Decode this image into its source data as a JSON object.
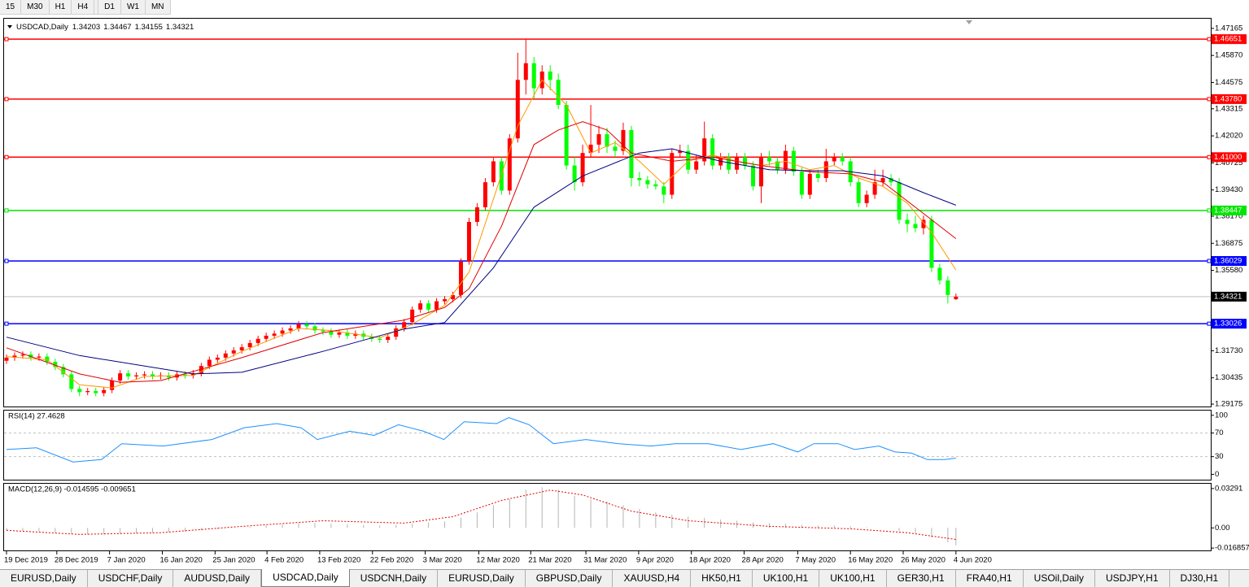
{
  "toolbar": {
    "timeframes": [
      "15",
      "M30",
      "H1",
      "H4",
      "D1",
      "W1",
      "MN"
    ]
  },
  "chart_data": {
    "type": "candlestick",
    "symbol": "USDCAD,Daily",
    "up_color": "#ff0000",
    "down_color": "#00ff00",
    "xlim": [
      -0.3,
      148.4
    ],
    "ylim": [
      1.2906,
      1.4763
    ],
    "yticks": [
      1.47165,
      {
        "value": 1.4587,
        "label": "1.45870"
      },
      1.44575,
      1.43315,
      {
        "value": 1.4202,
        "label": "1.42020"
      },
      1.40725,
      {
        "value": 1.3943,
        "label": "1.39430"
      },
      {
        "value": 1.3817,
        "label": "1.38170"
      },
      1.36875,
      {
        "value": 1.3558,
        "label": "1.35580"
      },
      {
        "value": 1.3173,
        "label": "1.31730"
      },
      1.30435,
      1.29175
    ],
    "date_ticks": [
      {
        "value": 0,
        "label": "19 Dec 2019"
      },
      {
        "value": 6.2,
        "label": "28 Dec 2019"
      },
      {
        "value": 12.7,
        "label": "7 Jan 2020"
      },
      {
        "value": 19.2,
        "label": "16 Jan 2020"
      },
      {
        "value": 25.7,
        "label": "25 Jan 2020"
      },
      {
        "value": 32.1,
        "label": "4 Feb 2020"
      },
      {
        "value": 38.6,
        "label": "13 Feb 2020"
      },
      {
        "value": 45.1,
        "label": "22 Feb 2020"
      },
      {
        "value": 51.6,
        "label": "3 Mar 2020"
      },
      {
        "value": 58.2,
        "label": "12 Mar 2020"
      },
      {
        "value": 64.6,
        "label": "21 Mar 2020"
      },
      {
        "value": 71.4,
        "label": "31 Mar 2020"
      },
      {
        "value": 77.9,
        "label": "9 Apr 2020"
      },
      {
        "value": 84.4,
        "label": "18 Apr 2020"
      },
      {
        "value": 90.9,
        "label": "28 Apr 2020"
      },
      {
        "value": 97.5,
        "label": "7 May 2020"
      },
      {
        "value": 104,
        "label": "16 May 2020"
      },
      {
        "value": 110.5,
        "label": "26 May 2020"
      },
      {
        "value": 117,
        "label": "4 Jun 2020"
      }
    ],
    "open": [
      1.3125,
      1.314,
      1.315,
      1.3155,
      1.314,
      1.3145,
      1.312,
      1.3095,
      1.306,
      1.299,
      1.2975,
      1.298,
      1.297,
      1.2985,
      1.303,
      1.3065,
      1.305,
      1.3055,
      1.306,
      1.305,
      1.3055,
      1.3045,
      1.306,
      1.3055,
      1.3065,
      1.31,
      1.313,
      1.314,
      1.316,
      1.3175,
      1.319,
      1.321,
      1.323,
      1.3245,
      1.3255,
      1.327,
      1.328,
      1.33,
      1.329,
      1.327,
      1.3265,
      1.325,
      1.326,
      1.3245,
      1.3255,
      1.324,
      1.323,
      1.3225,
      1.324,
      1.328,
      1.331,
      1.337,
      1.34,
      1.337,
      1.341,
      1.342,
      1.344,
      1.36,
      1.379,
      1.386,
      1.398,
      1.408,
      1.394,
      1.419,
      1.447,
      1.455,
      1.443,
      1.451,
      1.447,
      1.435,
      1.406,
      1.398,
      1.412,
      1.416,
      1.421,
      1.415,
      1.413,
      1.423,
      1.4,
      1.399,
      1.397,
      1.396,
      1.392,
      1.412,
      1.413,
      1.404,
      1.408,
      1.419,
      1.406,
      1.41,
      1.404,
      1.41,
      1.406,
      1.396,
      1.41,
      1.408,
      1.404,
      1.413,
      1.403,
      1.392,
      1.402,
      1.4,
      1.408,
      1.41,
      1.408,
      1.398,
      1.388,
      1.392,
      1.398,
      1.4,
      1.398,
      1.38,
      1.378,
      1.376,
      1.38,
      1.357,
      1.351,
      1.34203
    ],
    "high": [
      1.3155,
      1.3165,
      1.317,
      1.317,
      1.316,
      1.316,
      1.3135,
      1.311,
      1.3075,
      1.3005,
      1.2995,
      1.2995,
      1.3,
      1.3045,
      1.308,
      1.308,
      1.307,
      1.3075,
      1.3075,
      1.307,
      1.307,
      1.3075,
      1.3075,
      1.308,
      1.3115,
      1.3145,
      1.3155,
      1.3175,
      1.319,
      1.3205,
      1.3225,
      1.3245,
      1.326,
      1.327,
      1.3285,
      1.3295,
      1.3315,
      1.3315,
      1.3305,
      1.3285,
      1.328,
      1.3275,
      1.3275,
      1.327,
      1.327,
      1.3255,
      1.3245,
      1.3255,
      1.3295,
      1.3325,
      1.3385,
      1.3415,
      1.3415,
      1.3425,
      1.3435,
      1.3455,
      1.3615,
      1.381,
      1.388,
      1.4,
      1.41,
      1.41,
      1.421,
      1.46,
      1.4667,
      1.458,
      1.454,
      1.454,
      1.45,
      1.437,
      1.41,
      1.416,
      1.435,
      1.425,
      1.424,
      1.418,
      1.4265,
      1.425,
      1.403,
      1.401,
      1.399,
      1.398,
      1.414,
      1.416,
      1.416,
      1.411,
      1.427,
      1.421,
      1.412,
      1.412,
      1.412,
      1.412,
      1.408,
      1.412,
      1.413,
      1.41,
      1.416,
      1.415,
      1.405,
      1.404,
      1.404,
      1.414,
      1.412,
      1.412,
      1.41,
      1.4,
      1.394,
      1.404,
      1.404,
      1.402,
      1.4,
      1.383,
      1.382,
      1.382,
      1.382,
      1.359,
      1.353,
      1.34467
    ],
    "low": [
      1.311,
      1.3125,
      1.3135,
      1.3125,
      1.3125,
      1.3105,
      1.308,
      1.3045,
      1.2975,
      1.2955,
      1.296,
      1.2955,
      1.2955,
      1.297,
      1.3015,
      1.3035,
      1.3035,
      1.304,
      1.3035,
      1.3035,
      1.303,
      1.303,
      1.304,
      1.304,
      1.305,
      1.3085,
      1.3115,
      1.3125,
      1.3145,
      1.316,
      1.3175,
      1.3195,
      1.3215,
      1.323,
      1.324,
      1.3255,
      1.3265,
      1.3275,
      1.3255,
      1.325,
      1.3235,
      1.3235,
      1.323,
      1.323,
      1.3225,
      1.3215,
      1.321,
      1.321,
      1.3225,
      1.3265,
      1.3295,
      1.3355,
      1.3355,
      1.3355,
      1.3395,
      1.3405,
      1.3425,
      1.3585,
      1.377,
      1.3845,
      1.396,
      1.392,
      1.392,
      1.417,
      1.44,
      1.438,
      1.44,
      1.442,
      1.433,
      1.404,
      1.394,
      1.396,
      1.41,
      1.412,
      1.412,
      1.41,
      1.411,
      1.396,
      1.396,
      1.395,
      1.3945,
      1.388,
      1.39,
      1.41,
      1.402,
      1.402,
      1.406,
      1.404,
      1.404,
      1.402,
      1.402,
      1.404,
      1.394,
      1.388,
      1.406,
      1.402,
      1.402,
      1.401,
      1.39,
      1.39,
      1.398,
      1.398,
      1.406,
      1.406,
      1.396,
      1.386,
      1.386,
      1.39,
      1.396,
      1.396,
      1.378,
      1.374,
      1.374,
      1.373,
      1.355,
      1.349,
      1.34,
      1.34155
    ],
    "close": [
      1.314,
      1.315,
      1.3155,
      1.314,
      1.3145,
      1.312,
      1.3095,
      1.306,
      1.299,
      1.2975,
      1.298,
      1.297,
      1.2985,
      1.303,
      1.3065,
      1.305,
      1.3055,
      1.306,
      1.305,
      1.3055,
      1.3045,
      1.306,
      1.3055,
      1.3065,
      1.31,
      1.313,
      1.314,
      1.316,
      1.3175,
      1.319,
      1.321,
      1.323,
      1.3245,
      1.3255,
      1.327,
      1.328,
      1.33,
      1.329,
      1.327,
      1.3265,
      1.325,
      1.326,
      1.3245,
      1.3255,
      1.324,
      1.323,
      1.3225,
      1.324,
      1.328,
      1.331,
      1.337,
      1.34,
      1.337,
      1.341,
      1.342,
      1.344,
      1.36,
      1.379,
      1.386,
      1.398,
      1.408,
      1.394,
      1.419,
      1.447,
      1.455,
      1.443,
      1.451,
      1.447,
      1.435,
      1.406,
      1.398,
      1.412,
      1.416,
      1.421,
      1.415,
      1.413,
      1.423,
      1.4,
      1.399,
      1.397,
      1.396,
      1.392,
      1.412,
      1.413,
      1.404,
      1.408,
      1.419,
      1.406,
      1.41,
      1.404,
      1.41,
      1.406,
      1.396,
      1.41,
      1.408,
      1.404,
      1.413,
      1.403,
      1.392,
      1.402,
      1.4,
      1.408,
      1.41,
      1.408,
      1.398,
      1.388,
      1.392,
      1.398,
      1.4,
      1.398,
      1.38,
      1.378,
      1.376,
      1.38,
      1.357,
      1.351,
      1.344,
      1.34321
    ],
    "current_line_color": "#c0c0c0",
    "hlines": [
      {
        "price": 1.46651,
        "color": "#ff0000"
      },
      {
        "price": 1.4378,
        "label": "1.43780",
        "color": "#ff0000"
      },
      {
        "price": 1.41,
        "label": "1.41000",
        "color": "#ff0000"
      },
      {
        "price": 1.38447,
        "color": "#00e600"
      },
      {
        "price": 1.36029,
        "color": "#0000ff"
      },
      {
        "price": 1.33026,
        "color": "#0000ff"
      }
    ],
    "moving_averages": [
      {
        "color": "#ff9900",
        "x": [
          0,
          5,
          9,
          13,
          17,
          23,
          29,
          36,
          40,
          46,
          50,
          54,
          57,
          60,
          63,
          66,
          69,
          72,
          75,
          78,
          81,
          84,
          87,
          90,
          93,
          96,
          99,
          102,
          105,
          108,
          111,
          114,
          117
        ],
        "values": [
          1.3145,
          1.313,
          1.301,
          1.2995,
          1.305,
          1.3055,
          1.317,
          1.328,
          1.327,
          1.3235,
          1.33,
          1.339,
          1.355,
          1.39,
          1.425,
          1.447,
          1.435,
          1.412,
          1.417,
          1.408,
          1.397,
          1.408,
          1.411,
          1.408,
          1.406,
          1.408,
          1.404,
          1.406,
          1.4,
          1.396,
          1.388,
          1.374,
          1.356
        ]
      },
      {
        "color": "#e00000",
        "x": [
          0,
          9,
          14,
          19,
          29,
          39,
          49,
          54,
          57,
          61,
          65,
          68,
          71,
          74,
          77,
          82,
          87,
          93,
          99,
          104,
          108,
          112,
          117
        ],
        "values": [
          1.3187,
          1.3062,
          1.3022,
          1.303,
          1.314,
          1.326,
          1.332,
          1.338,
          1.347,
          1.377,
          1.416,
          1.423,
          1.427,
          1.423,
          1.412,
          1.408,
          1.41,
          1.406,
          1.403,
          1.402,
          1.398,
          1.386,
          1.371
        ]
      },
      {
        "color": "#000080",
        "x": [
          0,
          9,
          23,
          29,
          39,
          49,
          54,
          60,
          65,
          71,
          78,
          82,
          88,
          94,
          99,
          103,
          108,
          113,
          117
        ],
        "values": [
          1.3238,
          1.315,
          1.3062,
          1.307,
          1.317,
          1.3277,
          1.3308,
          1.357,
          1.386,
          1.401,
          1.412,
          1.414,
          1.408,
          1.404,
          1.4035,
          1.4035,
          1.401,
          1.393,
          1.387
        ]
      }
    ],
    "rsi": {
      "title": "RSI(14) 27.4628",
      "color": "#1e90ff",
      "ylim": [
        -9,
        108
      ],
      "yticks": [
        100,
        70,
        30,
        0
      ],
      "levels": [
        70,
        30
      ],
      "x": [
        0,
        3.7,
        8.2,
        11.7,
        14.2,
        19.3,
        25.3,
        29.3,
        33.3,
        36.3,
        38.3,
        42.3,
        45.3,
        48.3,
        51.4,
        53.9,
        56.4,
        60.4,
        61.9,
        64.4,
        67.4,
        71.4,
        75.4,
        79.4,
        82.4,
        86.5,
        90.5,
        94.5,
        97.5,
        99.5,
        102.5,
        104.5,
        107.5,
        109.5,
        111.5,
        113.5,
        115.6,
        117
      ],
      "values": [
        42,
        45,
        21,
        25,
        52,
        48,
        59,
        79,
        86,
        79,
        59,
        73,
        66,
        84,
        73,
        59,
        89,
        86,
        96,
        84,
        52,
        59,
        52,
        48,
        52,
        52,
        42,
        52,
        38,
        52,
        52,
        42,
        48,
        38,
        36,
        25,
        25,
        27.4628
      ]
    },
    "macd": {
      "title": "MACD(12,26,9) -0.014595 -0.009651",
      "ylim": [
        -0.0188,
        0.0369
      ],
      "yticks": [
        0.03291,
        {
          "value": 0,
          "label": "0.00"
        },
        -0.016857
      ],
      "histogram_color": "#b4b4b4",
      "signal_color": "#e00000",
      "histogram": {
        "x": [
          0,
          2,
          4,
          6,
          8,
          10,
          12,
          14,
          16,
          18,
          20,
          22,
          24,
          26,
          28,
          30,
          32,
          34,
          36,
          38,
          40,
          42,
          44,
          46,
          48,
          50,
          52,
          54,
          56,
          58,
          60,
          62,
          64,
          66,
          68,
          70,
          72,
          74,
          76,
          78,
          80,
          82,
          84,
          86,
          88,
          90,
          92,
          94,
          96,
          98,
          100,
          102,
          104,
          106,
          108,
          110,
          112,
          114,
          116,
          117
        ],
        "values": [
          -0.002,
          -0.0025,
          -0.003,
          -0.004,
          -0.005,
          -0.0055,
          -0.0055,
          -0.005,
          -0.0045,
          -0.004,
          -0.0035,
          -0.003,
          -0.002,
          -0.001,
          0.0,
          0.001,
          0.002,
          0.003,
          0.004,
          0.004,
          0.0035,
          0.003,
          0.0025,
          0.002,
          0.0025,
          0.0035,
          0.0045,
          0.0055,
          0.0085,
          0.013,
          0.019,
          0.024,
          0.032,
          0.034,
          0.032,
          0.027,
          0.024,
          0.022,
          0.019,
          0.016,
          0.013,
          0.011,
          0.0095,
          0.0085,
          0.007,
          0.006,
          0.0045,
          0.004,
          0.0035,
          0.0025,
          0.002,
          0.002,
          0.0015,
          0.0005,
          0.0,
          -0.0025,
          -0.0045,
          -0.008,
          -0.012,
          -0.014595
        ]
      },
      "signal": {
        "x": [
          0,
          9,
          19,
          29,
          39,
          49,
          55,
          61,
          67,
          71,
          77,
          84,
          94,
          104,
          111,
          117
        ],
        "values": [
          -0.002,
          -0.0054,
          -0.004,
          0.0013,
          0.006,
          0.004,
          0.0094,
          0.023,
          0.0316,
          0.0275,
          0.014,
          0.006,
          0.0013,
          -0.0007,
          -0.004,
          -0.009651
        ]
      }
    }
  },
  "tabs": {
    "active": 3,
    "items": [
      "EURUSD,Daily",
      "USDCHF,Daily",
      "AUDUSD,Daily",
      "USDCAD,Daily",
      "USDCNH,Daily",
      "EURUSD,Daily",
      "GBPUSD,Daily",
      "XAUUSD,H4",
      "HK50,H1",
      "UK100,H1",
      "UK100,H1",
      "GER30,H1",
      "FRA40,H1",
      "USOil,Daily",
      "USDJPY,H1",
      "DJ30,H1"
    ]
  }
}
